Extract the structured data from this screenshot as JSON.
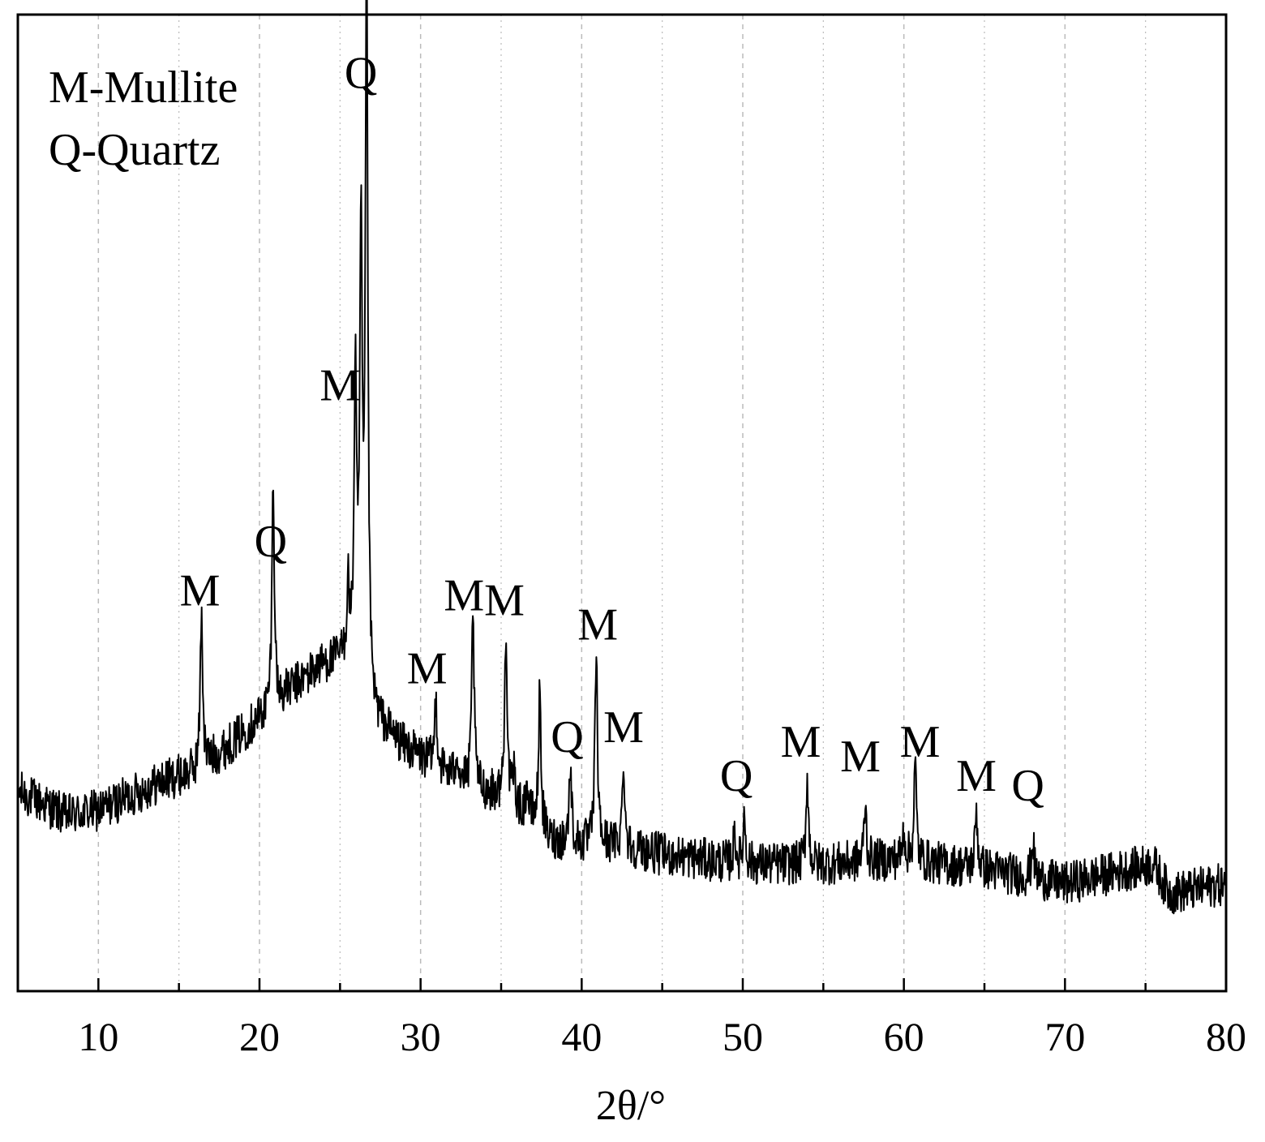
{
  "chart_data": {
    "type": "line",
    "xlabel": "2θ/°",
    "ylabel": "",
    "xlim": [
      5,
      80
    ],
    "ylim": [
      0,
      100
    ],
    "x_ticks": [
      10,
      20,
      30,
      40,
      50,
      60,
      70,
      80
    ],
    "y_ticks_shown": false,
    "grid": "vertical dashed at major ticks, dotted at minor ticks",
    "legend": {
      "placement": "top-left",
      "entries": [
        "M-Mullite",
        "Q-Quartz"
      ]
    },
    "colors": {
      "line": "#000000",
      "grid": "#bbbbbb"
    },
    "series": [
      {
        "background": [
          [
            5,
            20.5
          ],
          [
            8,
            18
          ],
          [
            10,
            18.5
          ],
          [
            12,
            20
          ],
          [
            14,
            21.5
          ],
          [
            16,
            22.5
          ],
          [
            18,
            25
          ],
          [
            20,
            28
          ],
          [
            22,
            31
          ],
          [
            24,
            33.5
          ],
          [
            25.5,
            34
          ],
          [
            27,
            28
          ],
          [
            29,
            25
          ],
          [
            31,
            23
          ],
          [
            33,
            21
          ],
          [
            35,
            20
          ],
          [
            37,
            17.5
          ],
          [
            38,
            15.5
          ],
          [
            40,
            15
          ],
          [
            42,
            15
          ],
          [
            45,
            14
          ],
          [
            50,
            13
          ],
          [
            55,
            13
          ],
          [
            60,
            13.5
          ],
          [
            65,
            12.5
          ],
          [
            70,
            11
          ],
          [
            74,
            12.5
          ],
          [
            75.5,
            13
          ],
          [
            76.5,
            10
          ],
          [
            80,
            11
          ]
        ],
        "noise_amplitude": 2.2,
        "peaks": [
          {
            "x": 16.4,
            "height": 16,
            "label": "M"
          },
          {
            "x": 20.85,
            "height": 23,
            "label": "Q"
          },
          {
            "x": 25.5,
            "height": 7
          },
          {
            "x": 25.95,
            "height": 30
          },
          {
            "x": 26.3,
            "height": 45,
            "label": "M"
          },
          {
            "x": 26.65,
            "height": 75,
            "label": "Q"
          },
          {
            "x": 30.95,
            "height": 7,
            "label": "M"
          },
          {
            "x": 32.25,
            "height": 3
          },
          {
            "x": 33.25,
            "height": 18,
            "label": "M"
          },
          {
            "x": 35.3,
            "height": 18,
            "label": "M"
          },
          {
            "x": 35.8,
            "height": 3
          },
          {
            "x": 36.6,
            "height": 3
          },
          {
            "x": 37.4,
            "height": 14
          },
          {
            "x": 39.3,
            "height": 8,
            "label": "Q"
          },
          {
            "x": 40.9,
            "height": 20,
            "label": "M"
          },
          {
            "x": 42.6,
            "height": 9,
            "label": "M"
          },
          {
            "x": 49.5,
            "height": 3
          },
          {
            "x": 50.1,
            "height": 5,
            "label": "Q"
          },
          {
            "x": 54.0,
            "height": 9,
            "label": "M"
          },
          {
            "x": 57.6,
            "height": 6,
            "label": "M"
          },
          {
            "x": 60.0,
            "height": 3
          },
          {
            "x": 60.7,
            "height": 10,
            "label": "M"
          },
          {
            "x": 64.5,
            "height": 6,
            "label": "M"
          },
          {
            "x": 68.0,
            "height": 4,
            "label": "Q"
          }
        ]
      }
    ],
    "peak_labels": [
      {
        "text": "M",
        "x": 16.3,
        "y": 39.5
      },
      {
        "text": "Q",
        "x": 20.7,
        "y": 44.5
      },
      {
        "text": "M",
        "x": 25.0,
        "y": 60.5
      },
      {
        "text": "Q",
        "x": 26.3,
        "y": 92.5
      },
      {
        "text": "M",
        "x": 30.4,
        "y": 31.5
      },
      {
        "text": "M",
        "x": 32.7,
        "y": 39.0
      },
      {
        "text": "M",
        "x": 35.2,
        "y": 38.5
      },
      {
        "text": "Q",
        "x": 39.1,
        "y": 24.5
      },
      {
        "text": "M",
        "x": 41.0,
        "y": 36.0
      },
      {
        "text": "M",
        "x": 42.6,
        "y": 25.5
      },
      {
        "text": "Q",
        "x": 49.6,
        "y": 20.5
      },
      {
        "text": "M",
        "x": 53.6,
        "y": 24.0
      },
      {
        "text": "M",
        "x": 57.3,
        "y": 22.5
      },
      {
        "text": "M",
        "x": 61.0,
        "y": 24.0
      },
      {
        "text": "M",
        "x": 64.5,
        "y": 20.5
      },
      {
        "text": "Q",
        "x": 67.7,
        "y": 19.5
      }
    ]
  }
}
